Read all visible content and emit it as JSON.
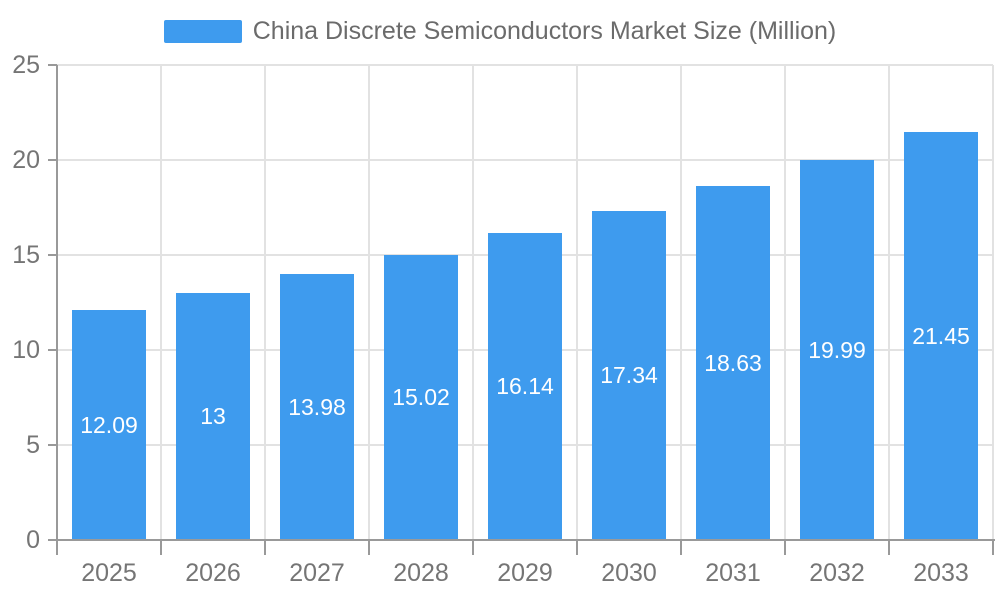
{
  "legend": {
    "label": "China Discrete Semiconductors Market Size (Million)"
  },
  "colors": {
    "bar": "#3e9bee",
    "grid": "#e2e2e2",
    "axis": "#999999",
    "tick_label": "#757575",
    "legend_label": "#6b6b6b",
    "bar_label": "#ffffff",
    "background": "#ffffff"
  },
  "chart_data": {
    "type": "bar",
    "title": "China Discrete Semiconductors Market Size (Million)",
    "categories": [
      "2025",
      "2026",
      "2027",
      "2028",
      "2029",
      "2030",
      "2031",
      "2032",
      "2033"
    ],
    "values": [
      12.09,
      13,
      13.98,
      15.02,
      16.14,
      17.34,
      18.63,
      19.99,
      21.45
    ],
    "bar_labels": [
      "12.09",
      "13",
      "13.98",
      "15.02",
      "16.14",
      "17.34",
      "18.63",
      "19.99",
      "21.45"
    ],
    "xlabel": "",
    "ylabel": "",
    "ylim": [
      0,
      25
    ],
    "yticks": [
      0,
      5,
      10,
      15,
      20,
      25
    ],
    "grid": true,
    "legend_position": "top",
    "bar_label_position": "center"
  }
}
